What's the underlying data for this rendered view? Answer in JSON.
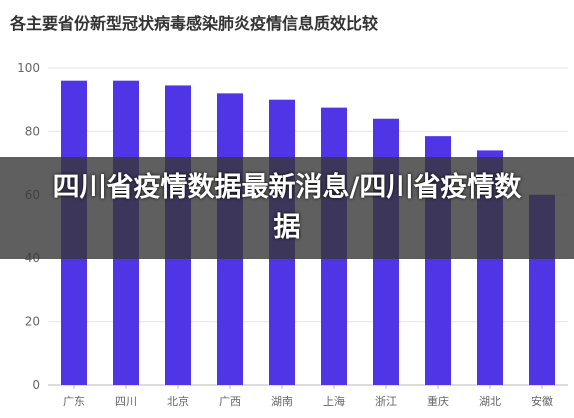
{
  "chart_data": {
    "type": "bar",
    "title": "各主要省份新型冠状病毒感染肺炎疫情信息质效比较",
    "categories": [
      "广东",
      "四川",
      "北京",
      "广西",
      "湖南",
      "上海",
      "浙江",
      "重庆",
      "湖北",
      "安徽"
    ],
    "values": [
      96,
      96,
      94.5,
      92,
      90,
      87.5,
      84,
      78.5,
      74,
      60
    ],
    "ylim": [
      0,
      100
    ],
    "yticks": [
      0,
      20,
      40,
      60,
      80,
      100
    ],
    "grid": true,
    "bar_color": "#4f35e6"
  },
  "overlay": {
    "text": "四川省疫情数据最新消息/四川省疫情数据"
  }
}
